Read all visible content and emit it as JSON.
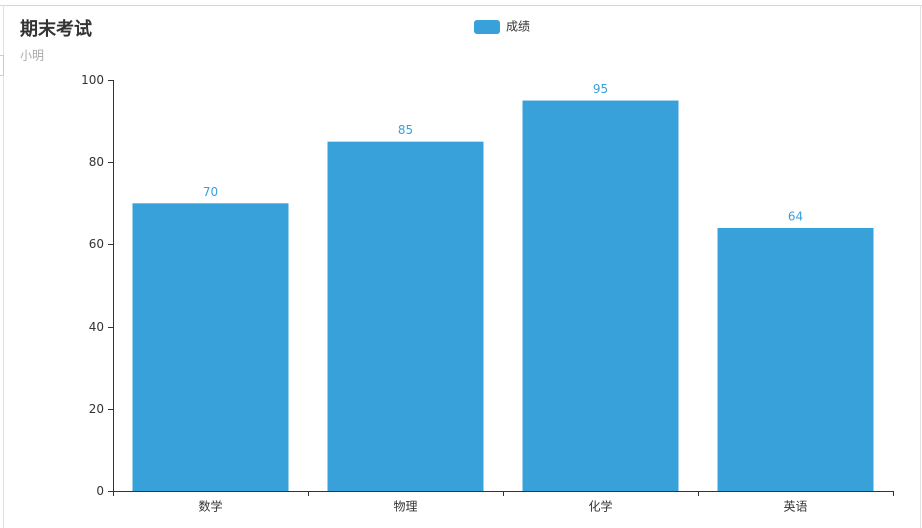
{
  "chart_data": {
    "type": "bar",
    "title": "期末考试",
    "subtitle": "小明",
    "categories": [
      "数学",
      "物理",
      "化学",
      "英语"
    ],
    "series": [
      {
        "name": "成绩",
        "color": "#38a1da",
        "values": [
          70,
          85,
          95,
          64
        ]
      }
    ],
    "ylim": [
      0,
      100
    ],
    "yticks": [
      0,
      20,
      40,
      60,
      80,
      100
    ],
    "grid": false,
    "legend": "top"
  }
}
